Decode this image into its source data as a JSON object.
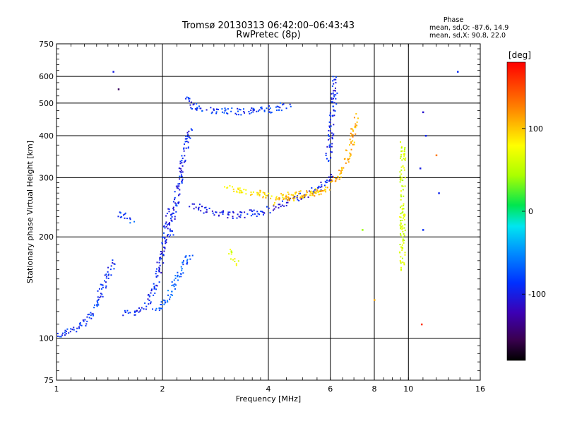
{
  "chart_data": {
    "type": "scatter",
    "title": "Tromsø 20130313 06:42:00–06:43:43",
    "subtitle": "RwPretec (8p)",
    "xlabel": "Frequency [MHz]",
    "ylabel": "Stationary phase Virtual Height [km]",
    "x_scale": "log",
    "y_scale": "log",
    "xlim": [
      1,
      16
    ],
    "ylim": [
      75,
      750
    ],
    "x_ticks": [
      1,
      2,
      4,
      6,
      8,
      10,
      16
    ],
    "y_ticks": [
      75,
      100,
      200,
      300,
      400,
      500,
      600,
      750
    ],
    "x_tick_labels": [
      "1",
      "2",
      "4",
      "6",
      "8",
      "10",
      "16"
    ],
    "y_tick_labels": [
      "75",
      "100",
      "200",
      "300",
      "400",
      "500",
      "600",
      "750"
    ],
    "grid": true,
    "colorbar": {
      "label": "[deg]",
      "min": -180,
      "max": 180,
      "ticks": [
        100,
        0,
        -100
      ],
      "tick_labels": [
        "100",
        "0",
        "-100"
      ]
    },
    "stats": {
      "heading": "Phase",
      "line_o": "mean, sd,O: -87.6, 14.9",
      "line_x": "mean, sd,X:  90.8, 22.0"
    },
    "traces": [
      {
        "x": [
          1.0,
          1.1,
          1.2,
          1.28,
          1.35,
          1.4,
          1.45
        ],
        "y": [
          102,
          106,
          110,
          122,
          140,
          155,
          168
        ],
        "phase": -90
      },
      {
        "x": [
          1.5,
          1.6,
          1.65
        ],
        "y": [
          235,
          225,
          220
        ],
        "phase": -80
      },
      {
        "x": [
          1.55,
          1.7,
          1.8,
          1.9,
          1.95,
          2.0,
          2.05,
          2.1
        ],
        "y": [
          118,
          120,
          125,
          140,
          160,
          180,
          210,
          240
        ],
        "phase": -95
      },
      {
        "x": [
          1.9,
          2.0,
          2.1,
          2.2,
          2.3,
          2.4
        ],
        "y": [
          120,
          125,
          135,
          150,
          165,
          180
        ],
        "phase": -70
      },
      {
        "x": [
          2.1,
          2.15,
          2.2,
          2.25,
          2.3,
          2.4
        ],
        "y": [
          200,
          230,
          260,
          300,
          350,
          420
        ],
        "phase": -95
      },
      {
        "x": [
          2.3,
          2.45,
          2.7,
          3.0,
          3.4,
          3.8,
          4.2,
          4.6
        ],
        "y": [
          520,
          490,
          478,
          472,
          472,
          474,
          482,
          495
        ],
        "phase": -85
      },
      {
        "x": [
          2.4,
          2.6,
          3.0,
          3.4,
          3.8,
          4.2,
          4.6,
          5.0,
          5.4,
          5.8,
          6.1
        ],
        "y": [
          250,
          240,
          232,
          233,
          237,
          245,
          255,
          265,
          275,
          290,
          310
        ],
        "phase": -100
      },
      {
        "x": [
          3.0,
          3.4,
          3.8,
          4.2,
          4.6,
          5.0,
          5.4,
          5.8
        ],
        "y": [
          285,
          275,
          268,
          265,
          265,
          268,
          272,
          280
        ],
        "phase": 90
      },
      {
        "x": [
          4.2,
          4.8,
          5.4,
          6.0,
          6.3,
          6.6,
          6.9,
          7.1
        ],
        "y": [
          255,
          262,
          270,
          282,
          300,
          330,
          380,
          460
        ],
        "phase": 110
      },
      {
        "x": [
          5.9,
          6.0,
          6.05,
          6.1,
          6.15,
          6.2
        ],
        "y": [
          340,
          380,
          430,
          480,
          530,
          600
        ],
        "phase": -95
      },
      {
        "x": [
          9.6,
          9.62,
          9.64,
          9.65
        ],
        "y": [
          160,
          200,
          300,
          380
        ],
        "phase": 60
      },
      {
        "x": [
          3.1,
          3.2,
          3.25
        ],
        "y": [
          180,
          170,
          165
        ],
        "phase": 70
      }
    ],
    "scatter_points": [
      {
        "x": 1.45,
        "y": 620,
        "phase": -100
      },
      {
        "x": 1.5,
        "y": 550,
        "phase": -150
      },
      {
        "x": 11.0,
        "y": 470,
        "phase": -110
      },
      {
        "x": 11.2,
        "y": 400,
        "phase": -95
      },
      {
        "x": 10.8,
        "y": 320,
        "phase": -100
      },
      {
        "x": 11.0,
        "y": 210,
        "phase": -90
      },
      {
        "x": 10.9,
        "y": 110,
        "phase": 160
      },
      {
        "x": 12.0,
        "y": 350,
        "phase": 130
      },
      {
        "x": 12.2,
        "y": 270,
        "phase": -95
      },
      {
        "x": 13.8,
        "y": 620,
        "phase": -90
      },
      {
        "x": 8.0,
        "y": 130,
        "phase": 110
      },
      {
        "x": 7.4,
        "y": 210,
        "phase": 40
      }
    ]
  }
}
